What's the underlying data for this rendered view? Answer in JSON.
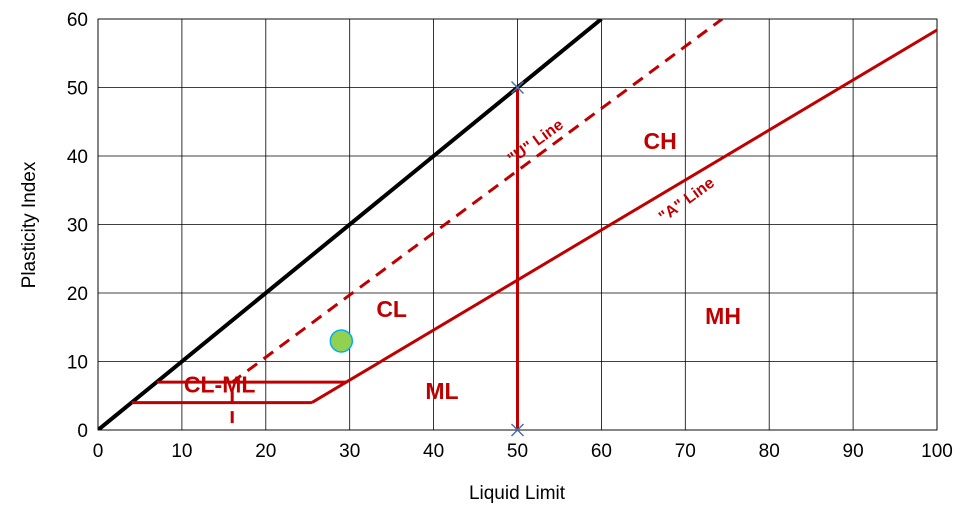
{
  "chart_data": {
    "type": "scatter",
    "title": "",
    "xlabel": "Liquid Limit",
    "ylabel": "Plasticity Index",
    "xlim": [
      0,
      100
    ],
    "ylim": [
      0,
      60
    ],
    "x_ticks": [
      "0",
      "10",
      "20",
      "30",
      "40",
      "50",
      "60",
      "70",
      "80",
      "90",
      "100"
    ],
    "y_ticks": [
      "0",
      "10",
      "20",
      "30",
      "40",
      "50",
      "60"
    ],
    "grid": true,
    "colors": {
      "line_red": "#c00000",
      "line_black": "#000000",
      "point_fill": "#92d050",
      "point_stroke": "#00b0f0",
      "marker": "#4a6fa5",
      "grid": "#000000"
    },
    "lines": [
      {
        "id": "pi-equals-ll",
        "color": "#000000",
        "dash": false,
        "points": [
          [
            0,
            0
          ],
          [
            60,
            60
          ]
        ]
      },
      {
        "id": "u-line",
        "color": "#c00000",
        "dash": true,
        "points": [
          [
            16,
            1
          ],
          [
            16,
            7
          ],
          [
            74.4,
            60
          ]
        ]
      },
      {
        "id": "a-line",
        "color": "#c00000",
        "dash": false,
        "points": [
          [
            25.5,
            4
          ],
          [
            29.6,
            7
          ],
          [
            100,
            58.4
          ]
        ]
      },
      {
        "id": "cl-ml-top",
        "color": "#c00000",
        "dash": false,
        "points": [
          [
            7,
            7
          ],
          [
            29.6,
            7
          ]
        ]
      },
      {
        "id": "cl-ml-bottom",
        "color": "#c00000",
        "dash": false,
        "points": [
          [
            4,
            4
          ],
          [
            25.5,
            4
          ]
        ]
      },
      {
        "id": "ll-50",
        "color": "#c00000",
        "dash": false,
        "points": [
          [
            50,
            0
          ],
          [
            50,
            50
          ]
        ]
      }
    ],
    "markers": [
      [
        50,
        0
      ],
      [
        50,
        50
      ]
    ],
    "points": [
      {
        "x": 29,
        "y": 13
      }
    ],
    "regions": [
      {
        "label": "CH",
        "x": 67,
        "y": 41
      },
      {
        "label": "CL",
        "x": 35,
        "y": 16.5
      },
      {
        "label": "MH",
        "x": 74.5,
        "y": 15.5
      },
      {
        "label": "ML",
        "x": 41,
        "y": 4.5
      },
      {
        "label": "CL-ML",
        "x": 14.5,
        "y": 5.5
      }
    ],
    "line_labels": [
      {
        "label": "\"U\" Line",
        "x": 52.5,
        "y": 41.5
      },
      {
        "label": "\"A\" Line",
        "x": 70.5,
        "y": 33
      }
    ]
  }
}
